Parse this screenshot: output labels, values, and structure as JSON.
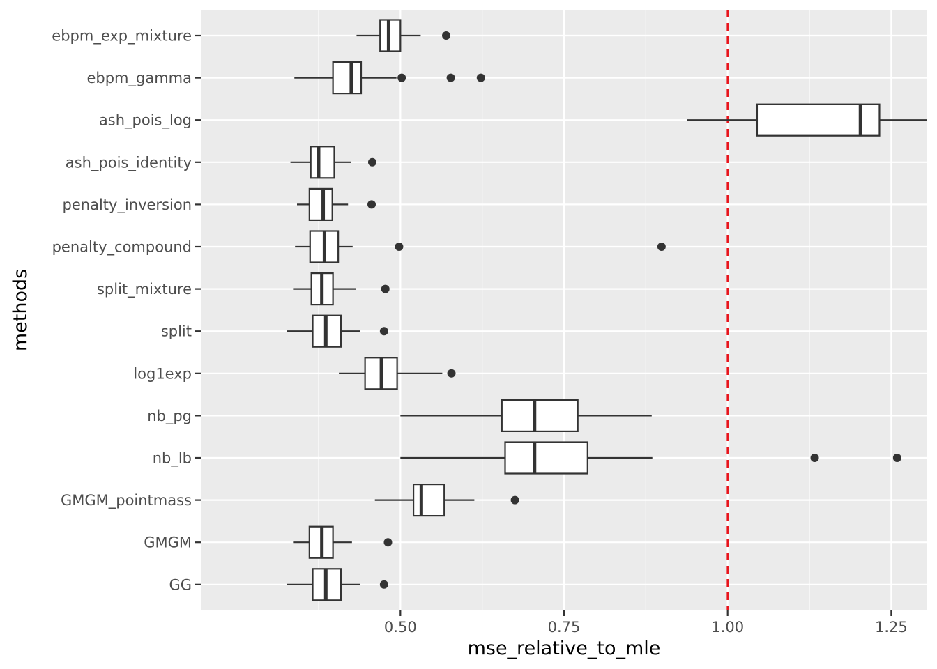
{
  "chart_data": {
    "type": "boxplot",
    "orientation": "horizontal",
    "xlabel": "mse_relative_to_mle",
    "ylabel": "methods",
    "xlim": [
      0.195,
      1.305
    ],
    "xticks": [
      0.5,
      0.75,
      1.0,
      1.25
    ],
    "xtick_labels": [
      "0.50",
      "0.75",
      "1.00",
      "1.25"
    ],
    "reference_line": {
      "x": 1.0,
      "style": "dashed",
      "color": "#e8141c"
    },
    "colors": {
      "panel": "#ebebeb",
      "grid": "#ffffff",
      "box_fill": "#ffffff",
      "stroke": "#333333",
      "outlier": "#333333"
    },
    "categories": [
      "ebpm_exp_mixture",
      "ebpm_gamma",
      "ash_pois_log",
      "ash_pois_identity",
      "penalty_inversion",
      "penalty_compound",
      "split_mixture",
      "split",
      "log1exp",
      "nb_pg",
      "nb_lb",
      "GMGM_pointmass",
      "GMGM",
      "GG"
    ],
    "boxes": [
      {
        "name": "ebpm_exp_mixture",
        "whisker_low": 0.433,
        "q1": 0.469,
        "median": 0.482,
        "q3": 0.5,
        "whisker_high": 0.531,
        "outliers": [
          0.57
        ]
      },
      {
        "name": "ebpm_gamma",
        "whisker_low": 0.338,
        "q1": 0.397,
        "median": 0.425,
        "q3": 0.44,
        "whisker_high": 0.494,
        "outliers": [
          0.502,
          0.577,
          0.623
        ]
      },
      {
        "name": "ash_pois_log",
        "whisker_low": 0.938,
        "q1": 1.045,
        "median": 1.203,
        "q3": 1.232,
        "whisker_high": 1.305,
        "outliers": []
      },
      {
        "name": "ash_pois_identity",
        "whisker_low": 0.332,
        "q1": 0.363,
        "median": 0.375,
        "q3": 0.399,
        "whisker_high": 0.425,
        "outliers": [
          0.457
        ]
      },
      {
        "name": "penalty_inversion",
        "whisker_low": 0.342,
        "q1": 0.361,
        "median": 0.382,
        "q3": 0.396,
        "whisker_high": 0.42,
        "outliers": [
          0.456
        ]
      },
      {
        "name": "penalty_compound",
        "whisker_low": 0.339,
        "q1": 0.362,
        "median": 0.384,
        "q3": 0.405,
        "whisker_high": 0.427,
        "outliers": [
          0.498,
          0.899
        ]
      },
      {
        "name": "split_mixture",
        "whisker_low": 0.336,
        "q1": 0.364,
        "median": 0.38,
        "q3": 0.397,
        "whisker_high": 0.432,
        "outliers": [
          0.477
        ]
      },
      {
        "name": "split",
        "whisker_low": 0.327,
        "q1": 0.366,
        "median": 0.386,
        "q3": 0.409,
        "whisker_high": 0.438,
        "outliers": [
          0.475
        ]
      },
      {
        "name": "log1exp",
        "whisker_low": 0.406,
        "q1": 0.446,
        "median": 0.471,
        "q3": 0.495,
        "whisker_high": 0.564,
        "outliers": [
          0.578
        ]
      },
      {
        "name": "nb_pg",
        "whisker_low": 0.5,
        "q1": 0.655,
        "median": 0.705,
        "q3": 0.771,
        "whisker_high": 0.884,
        "outliers": []
      },
      {
        "name": "nb_lb",
        "whisker_low": 0.5,
        "q1": 0.66,
        "median": 0.705,
        "q3": 0.786,
        "whisker_high": 0.885,
        "outliers": [
          1.133,
          1.259
        ]
      },
      {
        "name": "GMGM_pointmass",
        "whisker_low": 0.461,
        "q1": 0.52,
        "median": 0.532,
        "q3": 0.567,
        "whisker_high": 0.613,
        "outliers": [
          0.675
        ]
      },
      {
        "name": "GMGM",
        "whisker_low": 0.336,
        "q1": 0.361,
        "median": 0.38,
        "q3": 0.397,
        "whisker_high": 0.426,
        "outliers": [
          0.481
        ]
      },
      {
        "name": "GG",
        "whisker_low": 0.327,
        "q1": 0.366,
        "median": 0.386,
        "q3": 0.409,
        "whisker_high": 0.438,
        "outliers": [
          0.475
        ]
      }
    ]
  }
}
